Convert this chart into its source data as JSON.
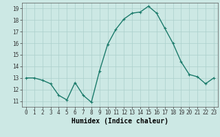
{
  "x": [
    0,
    1,
    2,
    3,
    4,
    5,
    6,
    7,
    8,
    9,
    10,
    11,
    12,
    13,
    14,
    15,
    16,
    17,
    18,
    19,
    20,
    21,
    22,
    23
  ],
  "y": [
    13,
    13,
    12.8,
    12.5,
    11.5,
    11.1,
    12.6,
    11.5,
    10.9,
    13.6,
    15.9,
    17.2,
    18.1,
    18.6,
    18.7,
    19.2,
    18.6,
    17.3,
    16.0,
    14.4,
    13.3,
    13.1,
    12.5,
    13.0
  ],
  "line_color": "#1a7a6a",
  "marker": "+",
  "marker_size": 3,
  "bg_color": "#cce8e4",
  "grid_color": "#aacfcb",
  "xlabel": "Humidex (Indice chaleur)",
  "ylim": [
    10.5,
    19.5
  ],
  "yticks": [
    11,
    12,
    13,
    14,
    15,
    16,
    17,
    18,
    19
  ],
  "xticks": [
    0,
    1,
    2,
    3,
    4,
    5,
    6,
    7,
    8,
    9,
    10,
    11,
    12,
    13,
    14,
    15,
    16,
    17,
    18,
    19,
    20,
    21,
    22,
    23
  ],
  "xtick_labels": [
    "0",
    "1",
    "2",
    "3",
    "4",
    "5",
    "6",
    "7",
    "8",
    "9",
    "10",
    "11",
    "12",
    "13",
    "14",
    "15",
    "16",
    "17",
    "18",
    "19",
    "20",
    "21",
    "22",
    "23"
  ],
  "tick_fontsize": 5.5,
  "xlabel_fontsize": 7,
  "line_width": 1.0
}
